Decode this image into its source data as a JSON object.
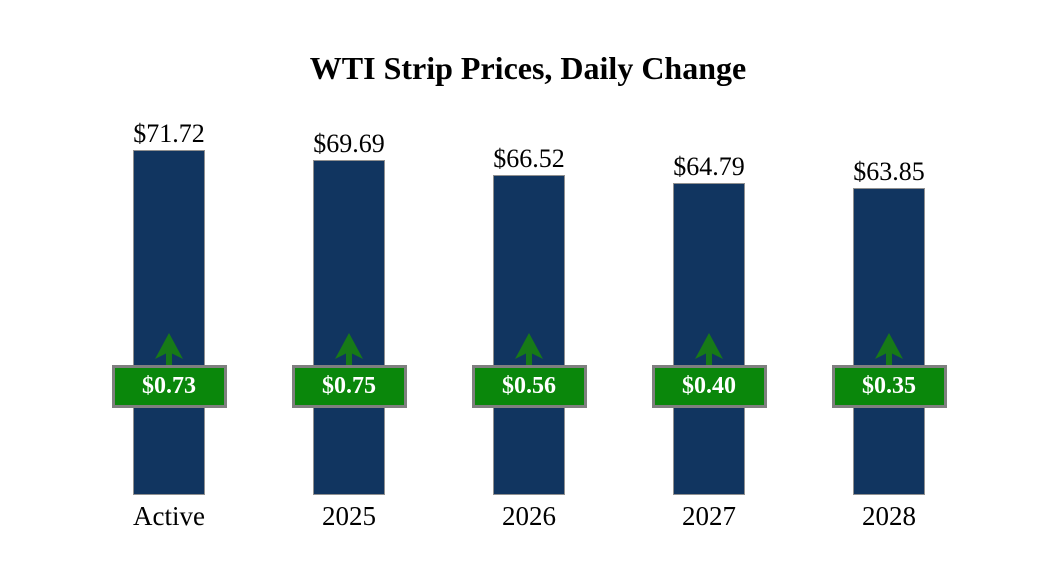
{
  "page": {
    "background": "#FFFFFF"
  },
  "chart_data": {
    "type": "bar",
    "title": "WTI Strip Prices, Daily Change",
    "categories": [
      "Active",
      "2025",
      "2026",
      "2027",
      "2028"
    ],
    "series": [
      {
        "name": "strip_price",
        "values": [
          71.72,
          69.69,
          66.52,
          64.79,
          63.85
        ],
        "labels": [
          "$71.72",
          "$69.69",
          "$66.52",
          "$64.79",
          "$63.85"
        ]
      },
      {
        "name": "daily_change",
        "values": [
          0.73,
          0.75,
          0.56,
          0.4,
          0.35
        ],
        "labels": [
          "$0.73",
          "$0.75",
          "$0.56",
          "$0.40",
          "$0.35"
        ],
        "direction": "up"
      }
    ],
    "ylim": [
      0,
      75
    ],
    "grid": false,
    "legend": "none",
    "axis_lines": "none",
    "bar_color": "#113560",
    "bar_border_color": "#909090",
    "change_badge_color": "#0A870B",
    "arrow_color": "#177A17",
    "badge_border_color": "#7F7F7F",
    "title_color": "#000000",
    "value_label_color": "#000000",
    "badge_text_color": "#FFFFFF"
  }
}
